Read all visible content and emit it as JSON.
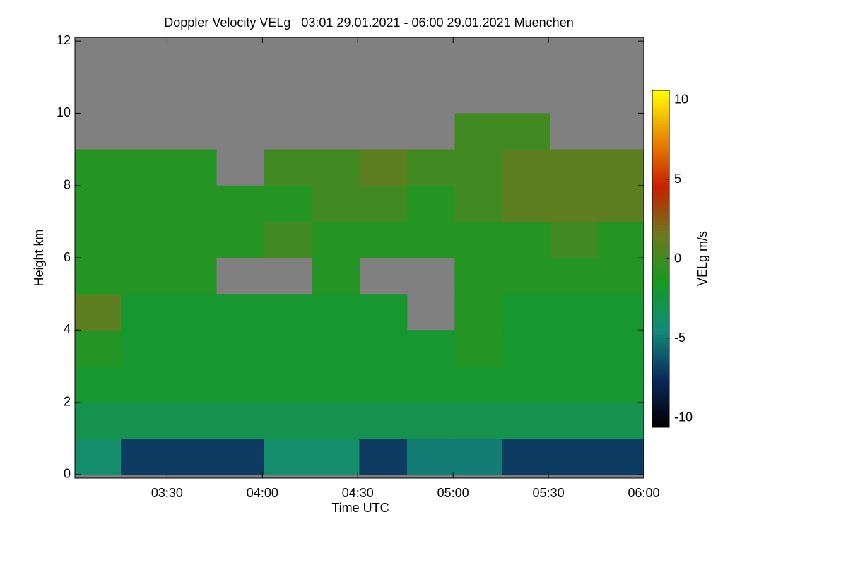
{
  "chart_data": {
    "type": "heatmap",
    "title": "Doppler Velocity VELg   03:01 29.01.2021 - 06:00 29.01.2021 Muenchen",
    "xlabel": "Time UTC",
    "ylabel": "Height km",
    "colorbar_label": "VELg m/s",
    "x": [
      188,
      203,
      218,
      233,
      248,
      263,
      278,
      293,
      308,
      323,
      338,
      353
    ],
    "y": [
      0.5,
      1.5,
      2.5,
      3.5,
      4.5,
      5.5,
      6.5,
      7.5,
      8.5,
      9.5,
      10.5,
      11.5
    ],
    "z": [
      [
        -4,
        -7,
        -7,
        -7,
        -4,
        -4,
        -7,
        -5,
        -5,
        -7,
        -7,
        -7
      ],
      [
        -3,
        -3,
        -3,
        -3,
        -3,
        -3,
        -3,
        -3,
        -3,
        -3,
        -3,
        -3
      ],
      [
        -2,
        -2,
        -2,
        -2,
        -2,
        -2,
        -2,
        -2,
        -2,
        -2,
        -2,
        -2
      ],
      [
        -1,
        -2,
        -2,
        -2,
        -2,
        -2,
        -2,
        -2,
        -1,
        -2,
        -2,
        -2
      ],
      [
        1,
        -2,
        -2,
        -2,
        -2,
        -2,
        -2,
        null,
        -1,
        -2,
        -2,
        -2
      ],
      [
        -1,
        -1,
        -1,
        null,
        null,
        -1,
        null,
        null,
        -1,
        -1,
        -1,
        -1
      ],
      [
        -1,
        -1,
        -1,
        -1,
        0,
        -1,
        -1,
        -1,
        -1,
        -1,
        0,
        -1
      ],
      [
        -1,
        -1,
        -1,
        -1,
        -1,
        0,
        0,
        -1,
        0,
        1,
        1,
        1
      ],
      [
        -1,
        -1,
        -1,
        null,
        0,
        0,
        1,
        0,
        0,
        1,
        1,
        1
      ],
      [
        null,
        null,
        null,
        null,
        null,
        null,
        null,
        null,
        0,
        0,
        null,
        null
      ],
      [
        null,
        null,
        null,
        null,
        null,
        null,
        null,
        null,
        null,
        null,
        null,
        null
      ],
      [
        null,
        null,
        null,
        null,
        null,
        null,
        null,
        null,
        null,
        null,
        null,
        null
      ]
    ],
    "xlim": [
      181,
      360
    ],
    "xticks": [
      {
        "value": 210,
        "label": "03:30"
      },
      {
        "value": 240,
        "label": "04:00"
      },
      {
        "value": 270,
        "label": "04:30"
      },
      {
        "value": 300,
        "label": "05:00"
      },
      {
        "value": 330,
        "label": "05:30"
      },
      {
        "value": 360,
        "label": "06:00"
      }
    ],
    "ylim": [
      -0.1,
      12.1
    ],
    "yticks": [
      0,
      2,
      4,
      6,
      8,
      10,
      12
    ],
    "zlim": [
      -10.6,
      10.6
    ],
    "zticks": [
      -10,
      -5,
      0,
      5,
      10
    ],
    "colorscale": [
      "#000000",
      "#0a2a5c",
      "#138a7a",
      "#169a22",
      "#6b7a20",
      "#c82000",
      "#e88a00",
      "#ffff00"
    ],
    "missing_color": "#808080"
  }
}
